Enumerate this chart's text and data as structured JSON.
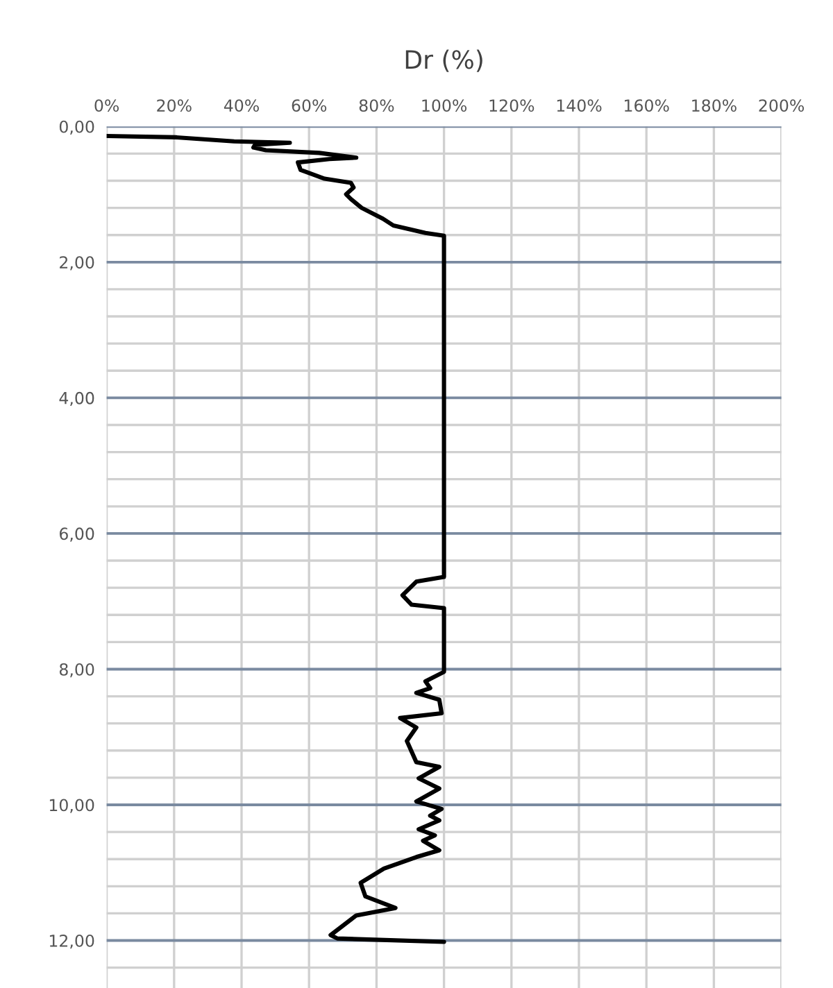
{
  "chart_data": {
    "type": "line",
    "title": "Dr (%)",
    "series": [
      {
        "color": "#000000",
        "x": [
          0,
          20.5,
          37.8,
          54.3,
          44,
          43.5,
          47.2,
          63,
          74,
          66,
          56.7,
          57.5,
          64.6,
          72.4,
          73.2,
          71,
          72.4,
          75.6,
          81.9,
          85,
          94.5,
          100,
          100,
          91.8,
          87.7,
          90.4,
          100,
          100,
          94.5,
          95.9,
          91.8,
          98.6,
          99.3,
          87,
          91.8,
          89,
          91.8,
          98.6,
          92.5,
          98.6,
          91.8,
          99.3,
          95.9,
          98.6,
          92.5,
          97.3,
          93.8,
          98.6,
          91.8,
          82.2,
          75.3,
          76.7,
          85.6,
          74,
          66.4,
          68.4,
          100
        ],
        "values": [
          0.14,
          0.16,
          0.22,
          0.24,
          0.27,
          0.31,
          0.35,
          0.39,
          0.46,
          0.48,
          0.53,
          0.64,
          0.77,
          0.83,
          0.9,
          1.0,
          1.07,
          1.2,
          1.36,
          1.46,
          1.57,
          1.61,
          6.64,
          6.71,
          6.91,
          7.05,
          7.1,
          8.04,
          8.18,
          8.28,
          8.35,
          8.45,
          8.65,
          8.72,
          8.86,
          9.06,
          9.37,
          9.44,
          9.61,
          9.76,
          9.95,
          10.06,
          10.16,
          10.23,
          10.36,
          10.45,
          10.53,
          10.67,
          10.77,
          10.94,
          11.15,
          11.35,
          11.52,
          11.63,
          11.92,
          11.97,
          12.02
        ]
      }
    ],
    "xlim": [
      0,
      200
    ],
    "xticks": [
      {
        "value": 0,
        "label": "0%"
      },
      {
        "value": 20,
        "label": "20%"
      },
      {
        "value": 40,
        "label": "40%"
      },
      {
        "value": 60,
        "label": "60%"
      },
      {
        "value": 80,
        "label": "80%"
      },
      {
        "value": 100,
        "label": "100%"
      },
      {
        "value": 120,
        "label": "120%"
      },
      {
        "value": 140,
        "label": "140%"
      },
      {
        "value": 160,
        "label": "160%"
      },
      {
        "value": 180,
        "label": "180%"
      },
      {
        "value": 200,
        "label": "200%"
      }
    ],
    "ylim": [
      12.7,
      0
    ],
    "yticks": [
      {
        "value": 0,
        "label": "0,00"
      },
      {
        "value": 0.4,
        "label": null
      },
      {
        "value": 0.8,
        "label": null
      },
      {
        "value": 1.2,
        "label": null
      },
      {
        "value": 1.6,
        "label": null
      },
      {
        "value": 2,
        "label": "2,00"
      },
      {
        "value": 2.4,
        "label": null
      },
      {
        "value": 2.8,
        "label": null
      },
      {
        "value": 3.2,
        "label": null
      },
      {
        "value": 3.6,
        "label": null
      },
      {
        "value": 4,
        "label": "4,00"
      },
      {
        "value": 4.4,
        "label": null
      },
      {
        "value": 4.8,
        "label": null
      },
      {
        "value": 5.2,
        "label": null
      },
      {
        "value": 5.6,
        "label": null
      },
      {
        "value": 6,
        "label": "6,00"
      },
      {
        "value": 6.4,
        "label": null
      },
      {
        "value": 6.8,
        "label": null
      },
      {
        "value": 7.2,
        "label": null
      },
      {
        "value": 7.6,
        "label": null
      },
      {
        "value": 8,
        "label": "8,00"
      },
      {
        "value": 8.4,
        "label": null
      },
      {
        "value": 8.8,
        "label": null
      },
      {
        "value": 9.2,
        "label": null
      },
      {
        "value": 9.6,
        "label": null
      },
      {
        "value": 10,
        "label": "10,00"
      },
      {
        "value": 10.4,
        "label": null
      },
      {
        "value": 10.8,
        "label": null
      },
      {
        "value": 11.2,
        "label": null
      },
      {
        "value": 11.6,
        "label": null
      },
      {
        "value": 12,
        "label": "12,00"
      },
      {
        "value": 12.4,
        "label": null
      }
    ],
    "grid": true,
    "marker": "none",
    "line_style": "solid",
    "legend": false
  }
}
